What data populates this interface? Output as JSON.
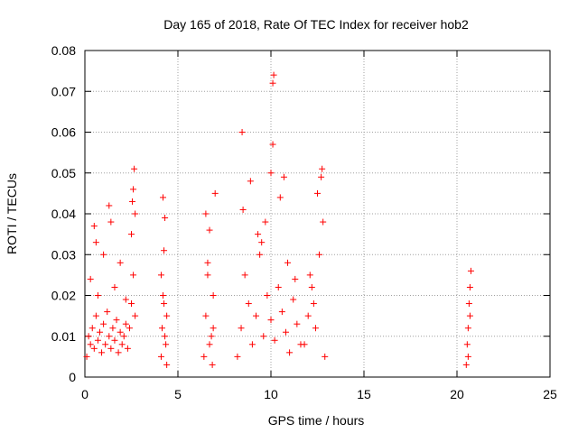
{
  "chart_data": {
    "type": "scatter",
    "title": "Day 165 of 2018, Rate Of TEC Index for receiver hob2",
    "xlabel": "GPS time / hours",
    "ylabel": "ROTI / TECUs",
    "xlim": [
      0,
      25
    ],
    "ylim": [
      0,
      0.08
    ],
    "xticks": [
      0,
      5,
      10,
      15,
      20,
      25
    ],
    "yticks": [
      0,
      0.01,
      0.02,
      0.03,
      0.04,
      0.05,
      0.06,
      0.07,
      0.08
    ],
    "xtick_labels": [
      "0",
      "5",
      "10",
      "15",
      "20",
      "25"
    ],
    "ytick_labels": [
      "0",
      "0.01",
      "0.02",
      "0.03",
      "0.04",
      "0.05",
      "0.06",
      "0.07",
      "0.08"
    ],
    "grid": true,
    "marker": "plus",
    "marker_color": "#ff0000",
    "x": [
      0.1,
      0.2,
      0.3,
      0.4,
      0.5,
      0.6,
      0.7,
      0.8,
      0.9,
      1.0,
      1.1,
      1.2,
      1.3,
      1.4,
      1.5,
      1.6,
      1.7,
      1.8,
      1.9,
      2.0,
      2.1,
      2.2,
      2.3,
      2.4,
      2.5,
      2.6,
      2.7,
      0.3,
      0.5,
      0.7,
      1.0,
      1.3,
      1.6,
      1.9,
      2.2,
      2.5,
      2.6,
      2.65,
      2.7,
      0.6,
      1.4,
      2.55,
      4.1,
      4.15,
      4.2,
      4.25,
      4.3,
      4.35,
      4.4,
      4.1,
      4.2,
      4.3,
      4.4,
      4.25,
      6.4,
      6.5,
      6.6,
      6.7,
      6.8,
      6.9,
      7.0,
      6.5,
      6.7,
      6.9,
      6.6,
      6.85,
      8.2,
      8.4,
      8.6,
      8.8,
      9.0,
      9.2,
      9.4,
      9.6,
      9.8,
      10.0,
      10.2,
      10.4,
      10.6,
      10.8,
      11.0,
      11.2,
      11.4,
      11.6,
      8.5,
      8.9,
      9.3,
      9.7,
      10.1,
      10.5,
      10.9,
      11.3,
      8.45,
      10.1,
      10.15,
      10.0,
      10.7,
      9.5,
      11.8,
      12.0,
      12.2,
      12.4,
      12.6,
      12.8,
      12.9,
      12.1,
      12.5,
      12.7,
      12.75,
      12.3,
      20.5,
      20.55,
      20.6,
      20.65,
      20.7,
      20.75,
      20.6,
      20.7
    ],
    "y": [
      0.005,
      0.01,
      0.008,
      0.012,
      0.007,
      0.015,
      0.009,
      0.011,
      0.006,
      0.013,
      0.008,
      0.016,
      0.01,
      0.007,
      0.012,
      0.009,
      0.014,
      0.006,
      0.011,
      0.008,
      0.01,
      0.013,
      0.007,
      0.012,
      0.018,
      0.025,
      0.015,
      0.024,
      0.037,
      0.02,
      0.03,
      0.042,
      0.022,
      0.028,
      0.019,
      0.035,
      0.046,
      0.051,
      0.04,
      0.033,
      0.038,
      0.043,
      0.005,
      0.012,
      0.02,
      0.031,
      0.039,
      0.008,
      0.015,
      0.025,
      0.044,
      0.01,
      0.003,
      0.018,
      0.005,
      0.015,
      0.028,
      0.036,
      0.01,
      0.02,
      0.045,
      0.04,
      0.008,
      0.012,
      0.025,
      0.003,
      0.005,
      0.012,
      0.025,
      0.018,
      0.008,
      0.015,
      0.03,
      0.01,
      0.02,
      0.014,
      0.009,
      0.022,
      0.016,
      0.011,
      0.006,
      0.019,
      0.013,
      0.008,
      0.041,
      0.048,
      0.035,
      0.038,
      0.057,
      0.044,
      0.028,
      0.024,
      0.06,
      0.072,
      0.074,
      0.05,
      0.049,
      0.033,
      0.008,
      0.015,
      0.022,
      0.012,
      0.03,
      0.038,
      0.005,
      0.025,
      0.045,
      0.049,
      0.051,
      0.018,
      0.003,
      0.008,
      0.012,
      0.018,
      0.022,
      0.026,
      0.005,
      0.015
    ]
  }
}
